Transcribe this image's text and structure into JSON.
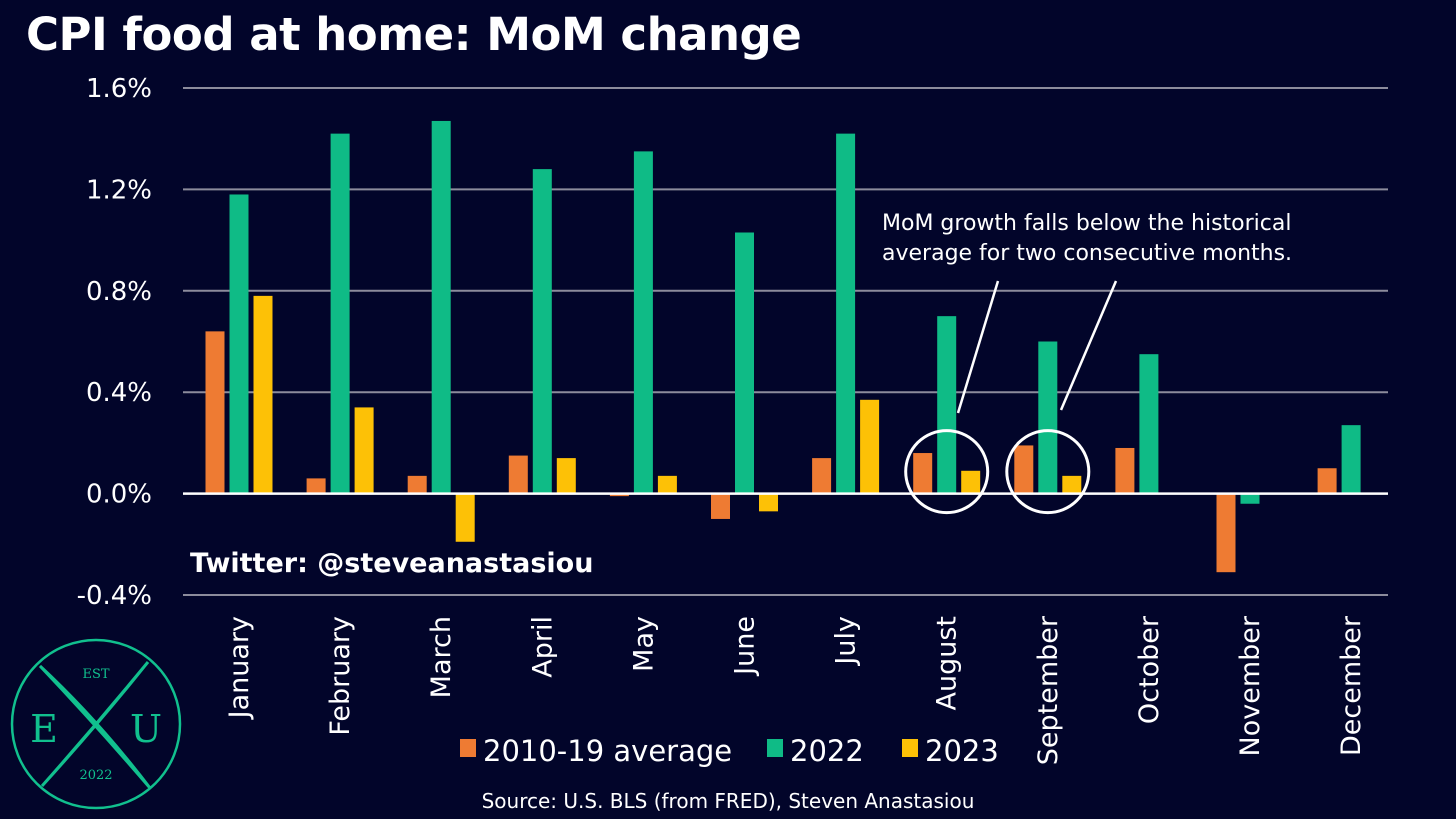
{
  "title": "CPI food at home: MoM change",
  "annotation": {
    "line1": "MoM growth falls below the historical",
    "line2": "average for two consecutive months."
  },
  "twitter": "Twitter: @steveanastasiou",
  "source": "Source: U.S. BLS (from FRED), Steven Anastasiou",
  "logo": {
    "top": "EST",
    "left": "E",
    "right": "U",
    "bottom": "2022"
  },
  "colors": {
    "background": "#02052a",
    "avg": "#ee7b33",
    "y2022": "#0fbb86",
    "y2023": "#fdc106",
    "grid": "#8c8c9c",
    "logo": "#11c08e"
  },
  "chart_data": {
    "type": "bar",
    "title": "CPI food at home: MoM change",
    "categories": [
      "January",
      "February",
      "March",
      "April",
      "May",
      "June",
      "July",
      "August",
      "September",
      "October",
      "November",
      "December"
    ],
    "series": [
      {
        "name": "2010-19 average",
        "values": [
          0.64,
          0.06,
          0.07,
          0.15,
          -0.01,
          -0.1,
          0.14,
          0.16,
          0.19,
          0.18,
          -0.31,
          0.1
        ]
      },
      {
        "name": "2022",
        "values": [
          1.18,
          1.42,
          1.47,
          1.28,
          1.35,
          1.03,
          1.42,
          0.7,
          0.6,
          0.55,
          -0.04,
          0.27
        ]
      },
      {
        "name": "2023",
        "values": [
          0.78,
          0.34,
          -0.19,
          0.14,
          0.07,
          -0.07,
          0.37,
          0.09,
          0.07,
          null,
          null,
          null
        ]
      }
    ],
    "yticks": [
      "1.6%",
      "1.2%",
      "0.8%",
      "0.4%",
      "0.0%",
      "-0.4%"
    ],
    "ylim": [
      -0.4,
      1.6
    ],
    "grid": true,
    "legend_position": "bottom",
    "highlighted_months": [
      "August",
      "September"
    ]
  }
}
